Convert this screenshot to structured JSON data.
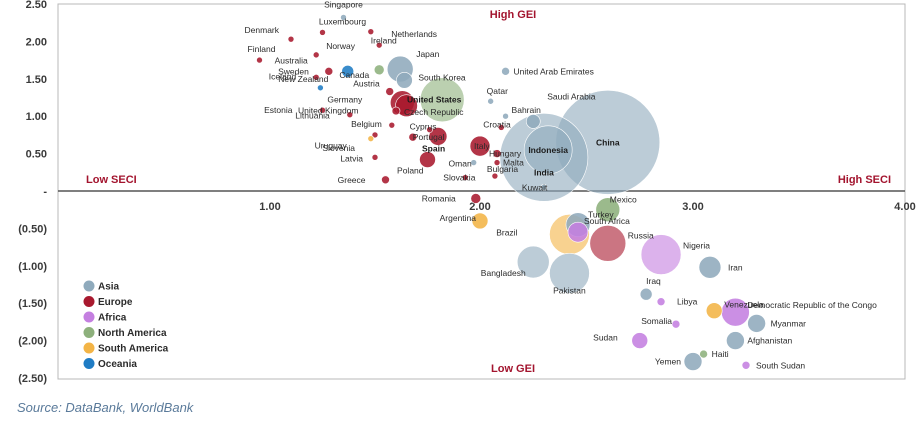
{
  "source": "Source: DataBank, WorldBank",
  "chart_data": {
    "type": "scatter",
    "title": "",
    "xlabel": "",
    "ylabel": "",
    "xlim": [
      0,
      4.0
    ],
    "ylim": [
      -2.5,
      2.5
    ],
    "x_ticks": [
      "1.00",
      "2.00",
      "3.00",
      "4.00"
    ],
    "y_ticks": [
      "2.50",
      "2.00",
      "1.50",
      "1.00",
      "0.50",
      "-",
      "(0.50)",
      "(1.00)",
      "(1.50)",
      "(2.00)",
      "(2.50)"
    ],
    "quadrant_labels": {
      "top": "High GEI",
      "bottom": "Low GEI",
      "left": "Low SECI",
      "right": "High SECI"
    },
    "legend_position": "bottom-left",
    "colors": {
      "Asia": "#8faabc",
      "Europe": "#a8192e",
      "Africa": "#c47fe0",
      "North America": "#8db07c",
      "South America": "#f3b446",
      "Oceania": "#1f7cc4"
    },
    "series": [
      {
        "name": "Asia",
        "color": "#8faabc"
      },
      {
        "name": "Europe",
        "color": "#a8192e"
      },
      {
        "name": "Africa",
        "color": "#c47fe0"
      },
      {
        "name": "North America",
        "color": "#8db07c"
      },
      {
        "name": "South America",
        "color": "#f3b446"
      },
      {
        "name": "Oceania",
        "color": "#1f7cc4"
      }
    ],
    "points": [
      {
        "label": "Singapore",
        "region": "Asia",
        "x": 1.35,
        "y": 2.32,
        "r": 3
      },
      {
        "label": "Denmark",
        "region": "Europe",
        "x": 1.1,
        "y": 2.03,
        "r": 3
      },
      {
        "label": "Luxembourg",
        "region": "Europe",
        "x": 1.25,
        "y": 2.12,
        "r": 3
      },
      {
        "label": "Ireland",
        "region": "Europe",
        "x": 1.48,
        "y": 2.13,
        "r": 3
      },
      {
        "label": "Netherlands",
        "region": "Europe",
        "x": 1.52,
        "y": 1.95,
        "r": 3
      },
      {
        "label": "Finland",
        "region": "Europe",
        "x": 0.95,
        "y": 1.75,
        "r": 3
      },
      {
        "label": "Norway",
        "region": "Europe",
        "x": 1.22,
        "y": 1.82,
        "r": 3
      },
      {
        "label": "Japan",
        "region": "Asia",
        "x": 1.62,
        "y": 1.63,
        "r": 13
      },
      {
        "label": "Australia",
        "region": "Oceania",
        "x": 1.37,
        "y": 1.6,
        "r": 6
      },
      {
        "label": "Sweden",
        "region": "Europe",
        "x": 1.28,
        "y": 1.6,
        "r": 4
      },
      {
        "label": "Canada",
        "region": "North America",
        "x": 1.52,
        "y": 1.62,
        "r": 5
      },
      {
        "label": "South Korea",
        "region": "Asia",
        "x": 1.64,
        "y": 1.48,
        "r": 8
      },
      {
        "label": "United Arab Emirates",
        "region": "Asia",
        "x": 2.12,
        "y": 1.6,
        "r": 4
      },
      {
        "label": "Iceland",
        "region": "Europe",
        "x": 1.22,
        "y": 1.52,
        "r": 3
      },
      {
        "label": "New Zealand",
        "region": "Oceania",
        "x": 1.24,
        "y": 1.38,
        "r": 3
      },
      {
        "label": "Austria",
        "region": "Europe",
        "x": 1.57,
        "y": 1.33,
        "r": 4
      },
      {
        "label": "United States",
        "region": "North America",
        "x": 1.82,
        "y": 1.22,
        "r": 22
      },
      {
        "label": "Qatar",
        "region": "Asia",
        "x": 2.05,
        "y": 1.2,
        "r": 3
      },
      {
        "label": "Germany",
        "region": "Europe",
        "x": 1.63,
        "y": 1.18,
        "r": 12
      },
      {
        "label": "Bahrain",
        "region": "Asia",
        "x": 2.12,
        "y": 1.0,
        "r": 3
      },
      {
        "label": "Saudi Arabia",
        "region": "Asia",
        "x": 2.25,
        "y": 0.93,
        "r": 7
      },
      {
        "label": "Estonia",
        "region": "Europe",
        "x": 1.25,
        "y": 1.08,
        "r": 3
      },
      {
        "label": "Lithuania",
        "region": "Europe",
        "x": 1.38,
        "y": 1.02,
        "r": 3
      },
      {
        "label": "Czech Republic",
        "region": "Europe",
        "x": 1.6,
        "y": 1.07,
        "r": 4
      },
      {
        "label": "United Kingdom",
        "region": "Europe",
        "x": 1.65,
        "y": 1.14,
        "r": 11
      },
      {
        "label": "Belgium",
        "region": "Europe",
        "x": 1.58,
        "y": 0.88,
        "r": 3
      },
      {
        "label": "Cyprus",
        "region": "Europe",
        "x": 1.76,
        "y": 0.82,
        "r": 3
      },
      {
        "label": "Croatia",
        "region": "Europe",
        "x": 2.1,
        "y": 0.85,
        "r": 3
      },
      {
        "label": "Slovenia",
        "region": "Europe",
        "x": 1.5,
        "y": 0.75,
        "r": 3
      },
      {
        "label": "Portugal",
        "region": "Europe",
        "x": 1.68,
        "y": 0.72,
        "r": 4
      },
      {
        "label": "Uruguay",
        "region": "South America",
        "x": 1.48,
        "y": 0.7,
        "r": 3
      },
      {
        "label": "Spain",
        "region": "Europe",
        "x": 1.8,
        "y": 0.73,
        "r": 9
      },
      {
        "label": "Italy",
        "region": "Europe",
        "x": 2.0,
        "y": 0.6,
        "r": 10
      },
      {
        "label": "Hungary",
        "region": "Europe",
        "x": 2.08,
        "y": 0.5,
        "r": 4
      },
      {
        "label": "China",
        "region": "Asia",
        "x": 2.6,
        "y": 0.65,
        "r": 52
      },
      {
        "label": "Indonesia",
        "region": "Asia",
        "x": 2.32,
        "y": 0.55,
        "r": 24
      },
      {
        "label": "India",
        "region": "Asia",
        "x": 2.3,
        "y": 0.45,
        "r": 44
      },
      {
        "label": "Latvia",
        "region": "Europe",
        "x": 1.5,
        "y": 0.45,
        "r": 3
      },
      {
        "label": "Poland",
        "region": "Europe",
        "x": 1.75,
        "y": 0.42,
        "r": 8
      },
      {
        "label": "Oman",
        "region": "Asia",
        "x": 1.97,
        "y": 0.38,
        "r": 3
      },
      {
        "label": "Malta",
        "region": "Europe",
        "x": 2.08,
        "y": 0.38,
        "r": 3
      },
      {
        "label": "Bulgaria",
        "region": "Europe",
        "x": 2.07,
        "y": 0.2,
        "r": 3
      },
      {
        "label": "Greece",
        "region": "Europe",
        "x": 1.55,
        "y": 0.15,
        "r": 4
      },
      {
        "label": "Slovakia",
        "region": "Europe",
        "x": 1.93,
        "y": 0.18,
        "r": 3
      },
      {
        "label": "Kuwait",
        "region": "Asia",
        "x": 2.3,
        "y": 0.05,
        "r": 3
      },
      {
        "label": "Romania",
        "region": "Europe",
        "x": 1.98,
        "y": -0.1,
        "r": 5
      },
      {
        "label": "Turkey",
        "region": "Asia",
        "x": 2.46,
        "y": -0.45,
        "r": 12
      },
      {
        "label": "Mexico",
        "region": "North America",
        "x": 2.6,
        "y": -0.25,
        "r": 12
      },
      {
        "label": "South Africa",
        "region": "Africa",
        "x": 2.46,
        "y": -0.55,
        "r": 10
      },
      {
        "label": "Argentina",
        "region": "South America",
        "x": 2.0,
        "y": -0.4,
        "r": 8
      },
      {
        "label": "Russia",
        "region": "Europe",
        "x": 2.6,
        "y": -0.7,
        "r": 18
      },
      {
        "label": "Brazil",
        "region": "South America",
        "x": 2.42,
        "y": -0.58,
        "r": 20
      },
      {
        "label": "Nigeria",
        "region": "Africa",
        "x": 2.85,
        "y": -0.85,
        "r": 20
      },
      {
        "label": "Iran",
        "region": "Asia",
        "x": 3.08,
        "y": -1.02,
        "r": 11
      },
      {
        "label": "Bangladesh",
        "region": "Asia",
        "x": 2.25,
        "y": -0.95,
        "r": 16
      },
      {
        "label": "Pakistan",
        "region": "Asia",
        "x": 2.42,
        "y": -1.1,
        "r": 20
      },
      {
        "label": "Iraq",
        "region": "Asia",
        "x": 2.78,
        "y": -1.38,
        "r": 6
      },
      {
        "label": "Libya",
        "region": "Africa",
        "x": 2.85,
        "y": -1.48,
        "r": 4
      },
      {
        "label": "Democratic Republic of the Congo",
        "region": "Africa",
        "x": 3.2,
        "y": -1.62,
        "r": 14
      },
      {
        "label": "Venezuela",
        "region": "South America",
        "x": 3.1,
        "y": -1.6,
        "r": 8
      },
      {
        "label": "Somalia",
        "region": "Africa",
        "x": 2.92,
        "y": -1.78,
        "r": 4
      },
      {
        "label": "Myanmar",
        "region": "Asia",
        "x": 3.3,
        "y": -1.77,
        "r": 9
      },
      {
        "label": "Sudan",
        "region": "Africa",
        "x": 2.75,
        "y": -2.0,
        "r": 8
      },
      {
        "label": "Afghanistan",
        "region": "Asia",
        "x": 3.2,
        "y": -2.0,
        "r": 9
      },
      {
        "label": "Haiti",
        "region": "North America",
        "x": 3.05,
        "y": -2.18,
        "r": 4
      },
      {
        "label": "Yemen",
        "region": "Asia",
        "x": 3.0,
        "y": -2.28,
        "r": 9
      },
      {
        "label": "South Sudan",
        "region": "Africa",
        "x": 3.25,
        "y": -2.33,
        "r": 4
      }
    ]
  }
}
